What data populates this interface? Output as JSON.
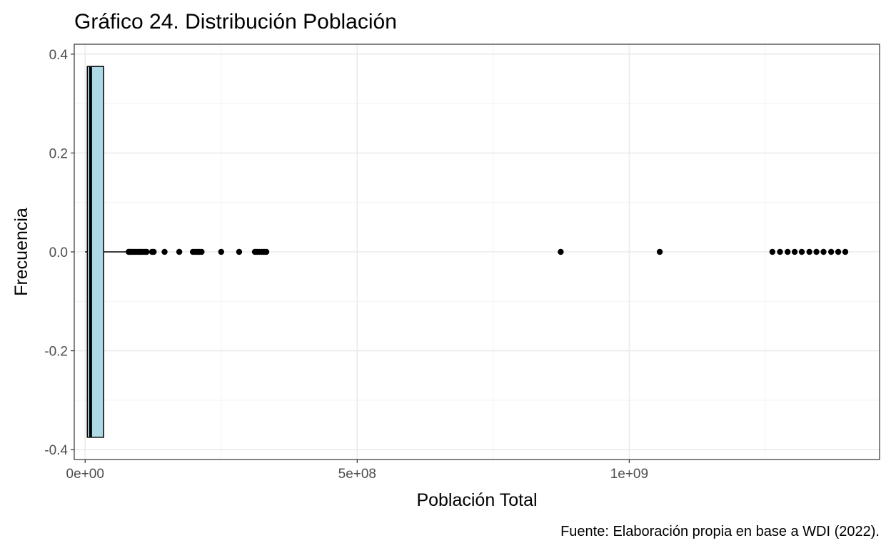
{
  "chart_data": {
    "type": "boxplot",
    "title": "Gráfico 24. Distribución Población",
    "xlabel": "Población Total",
    "ylabel": "Frecuencia",
    "caption": "Fuente: Elaboración propia en base a WDI (2022).",
    "xlim": [
      -20000000,
      1460000000
    ],
    "ylim": [
      -0.42,
      0.42
    ],
    "x_ticks": [
      {
        "value": 0,
        "label": "0e+00"
      },
      {
        "value": 500000000,
        "label": "5e+08"
      },
      {
        "value": 1000000000,
        "label": "1e+09"
      }
    ],
    "y_ticks": [
      {
        "value": -0.4,
        "label": "-0.4"
      },
      {
        "value": -0.2,
        "label": "-0.2"
      },
      {
        "value": 0.0,
        "label": "0.0"
      },
      {
        "value": 0.2,
        "label": "0.2"
      },
      {
        "value": 0.4,
        "label": "0.4"
      }
    ],
    "grid": true,
    "box": {
      "whisker_low": 0,
      "q1": 4000000,
      "median": 10000000,
      "q3": 34000000,
      "whisker_high": 78000000,
      "y_center": 0.0,
      "half_height": 0.375,
      "fill": "#add8e6"
    },
    "outliers": [
      80000000,
      82000000,
      85000000,
      88000000,
      92000000,
      96000000,
      100000000,
      103000000,
      106000000,
      110000000,
      113000000,
      123000000,
      126000000,
      146000000,
      173000000,
      198000000,
      202000000,
      206000000,
      210000000,
      214000000,
      250000000,
      283000000,
      312000000,
      316000000,
      320000000,
      325000000,
      329000000,
      333000000,
      874000000,
      1056000000,
      1263000000,
      1277000000,
      1291000000,
      1304000000,
      1317000000,
      1331000000,
      1344000000,
      1357000000,
      1371000000,
      1384000000,
      1397000000
    ]
  }
}
